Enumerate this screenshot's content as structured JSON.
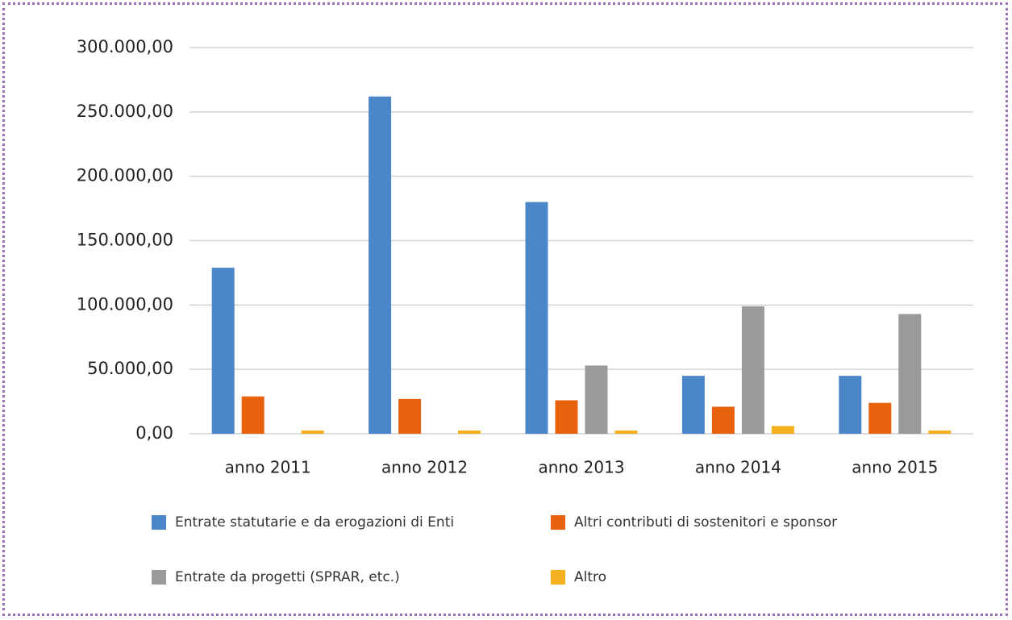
{
  "chart_data": {
    "type": "bar",
    "categories": [
      "anno 2011",
      "anno 2012",
      "anno 2013",
      "anno 2014",
      "anno 2015"
    ],
    "series": [
      {
        "name": "Entrate statutarie e da erogazioni di Enti",
        "color": "#4a86c8",
        "values": [
          129000,
          262000,
          180000,
          45000,
          45000
        ]
      },
      {
        "name": "Altri contributi di sostenitori e sponsor",
        "color": "#e8620e",
        "values": [
          29000,
          27000,
          26000,
          21000,
          24000
        ]
      },
      {
        "name": "Entrate da progetti (SPRAR, etc.)",
        "color": "#9a9a9a",
        "values": [
          0,
          0,
          53000,
          99000,
          93000
        ]
      },
      {
        "name": "Altro",
        "color": "#f5b020",
        "values": [
          2500,
          2500,
          2500,
          6000,
          2500
        ]
      }
    ],
    "ylim": [
      0,
      300000
    ],
    "yticks": [
      {
        "value": 0,
        "label": "0,00"
      },
      {
        "value": 50000,
        "label": "50.000,00"
      },
      {
        "value": 100000,
        "label": "100.000,00"
      },
      {
        "value": 150000,
        "label": "150.000,00"
      },
      {
        "value": 200000,
        "label": "200.000,00"
      },
      {
        "value": 250000,
        "label": "250.000,00"
      },
      {
        "value": 300000,
        "label": "300.000,00"
      }
    ],
    "grid": true,
    "legend": "bottom"
  }
}
